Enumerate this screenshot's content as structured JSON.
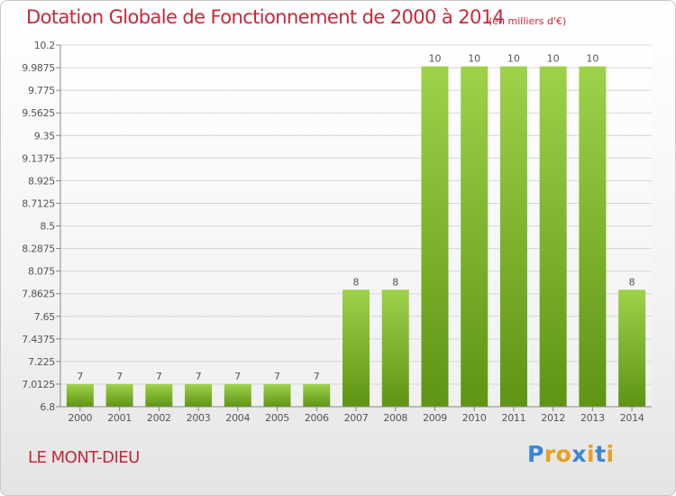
{
  "title": "Dotation Globale de Fonctionnement de 2000 à 2014",
  "unit": "(en milliers d'€)",
  "commune": "LE MONT-DIEU",
  "logo": {
    "text": "Proxiti",
    "letters": [
      "P",
      "r",
      "o",
      "x",
      "i",
      "t",
      "i"
    ],
    "colors": [
      "#3a86d6",
      "#e8a020",
      "#e8a020",
      "#3a86d6",
      "#e8a020",
      "#3a86d6",
      "#e8a020"
    ]
  },
  "chart_data": {
    "type": "bar",
    "title": "Dotation Globale de Fonctionnement de 2000 à 2014",
    "categories": [
      "2000",
      "2001",
      "2002",
      "2003",
      "2004",
      "2005",
      "2006",
      "2007",
      "2008",
      "2009",
      "2010",
      "2011",
      "2012",
      "2013",
      "2014"
    ],
    "values": [
      7,
      7,
      7,
      7,
      7,
      7,
      7,
      8,
      8,
      10,
      10,
      10,
      10,
      10,
      8
    ],
    "bar_value_drawn": [
      7.0125,
      7.0125,
      7.0125,
      7.0125,
      7.0125,
      7.0125,
      7.0125,
      7.9,
      7.9,
      10,
      10,
      10,
      10,
      10,
      7.9
    ],
    "data_labels": [
      "7",
      "7",
      "7",
      "7",
      "7",
      "7",
      "7",
      "8",
      "8",
      "10",
      "10",
      "10",
      "10",
      "10",
      "8"
    ],
    "ylim": [
      6.8,
      10.2
    ],
    "yticks": [
      "10.2",
      "9.9875",
      "9.775",
      "9.5625",
      "9.35",
      "9.1375",
      "8.925",
      "8.7125",
      "8.5",
      "8.2875",
      "8.075",
      "7.8625",
      "7.65",
      "7.4375",
      "7.225",
      "7.0125",
      "6.8"
    ],
    "ytick_values": [
      10.2,
      9.9875,
      9.775,
      9.5625,
      9.35,
      9.1375,
      8.925,
      8.7125,
      8.5,
      8.2875,
      8.075,
      7.8625,
      7.65,
      7.4375,
      7.225,
      7.0125,
      6.8
    ],
    "xlabel": "",
    "ylabel": "",
    "grid": true,
    "colors": {
      "bar_top": "#9ed24a",
      "bar_bottom": "#5f9414",
      "grid": "#d6d6d6",
      "axis": "#888888",
      "label": "#555555"
    }
  }
}
